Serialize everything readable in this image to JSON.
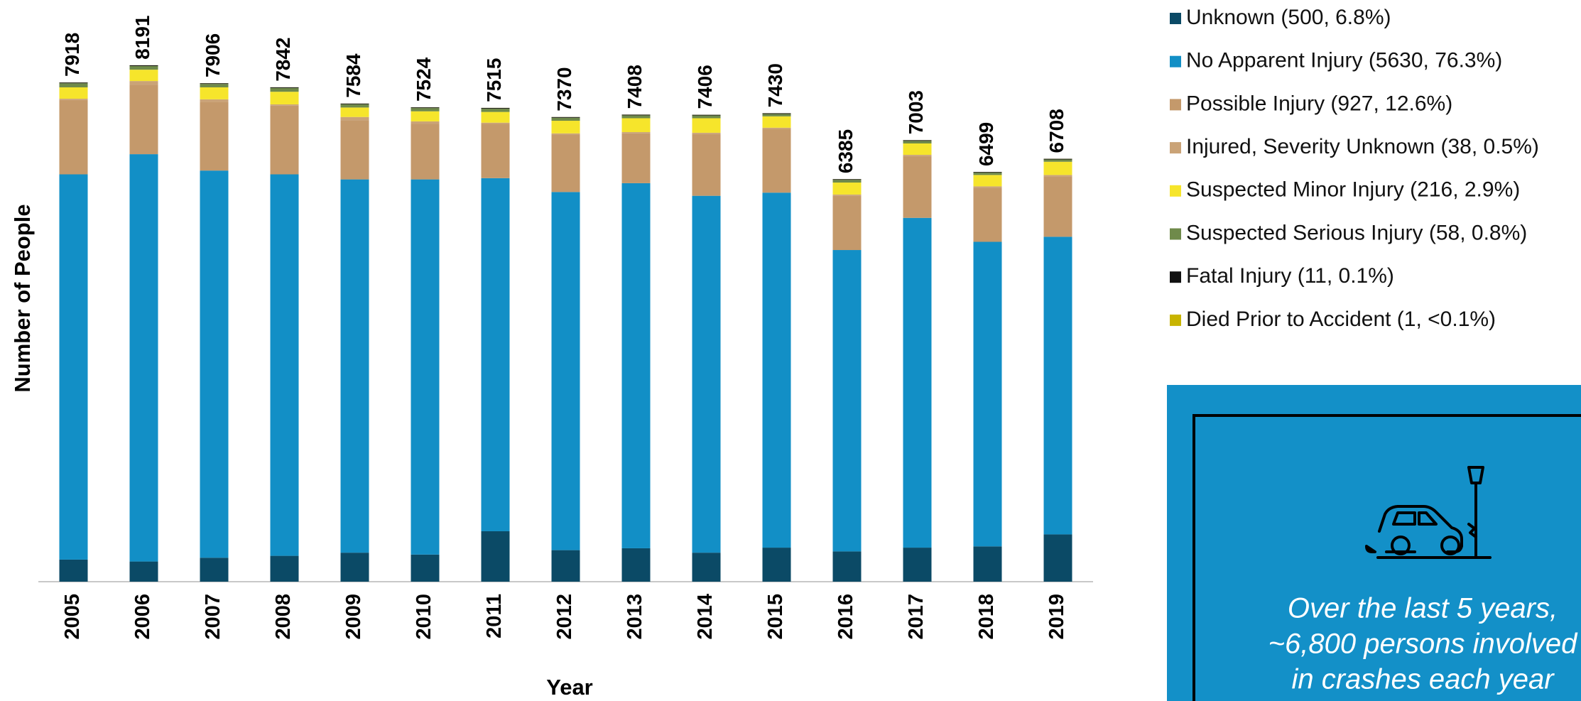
{
  "chart_data": {
    "type": "stacked_bar",
    "x_label": "Year",
    "y_label": "Number of People",
    "categories": [
      "2005",
      "2006",
      "2007",
      "2008",
      "2009",
      "2010",
      "2011",
      "2012",
      "2013",
      "2014",
      "2015",
      "2016",
      "2017",
      "2018",
      "2019"
    ],
    "totals": [
      7918,
      8191,
      7906,
      7842,
      7584,
      7524,
      7515,
      7370,
      7408,
      7406,
      7430,
      6385,
      7003,
      6499,
      6708
    ],
    "ylim": [
      0,
      9000
    ],
    "series": [
      {
        "name": "Unknown (500, 6.8%)",
        "color": "#0b4a66",
        "values": [
          350,
          320,
          380,
          410,
          460,
          430,
          800,
          500,
          530,
          460,
          540,
          480,
          540,
          560,
          750
        ]
      },
      {
        "name": "No Apparent Injury (5630, 76.3%)",
        "color": "#128fc6",
        "values": [
          6110,
          6460,
          6140,
          6050,
          5920,
          5950,
          5600,
          5680,
          5790,
          5660,
          5630,
          4780,
          5230,
          4830,
          4720
        ]
      },
      {
        "name": "Possible Injury (927, 12.6%)",
        "color": "#c4996b",
        "values": [
          1180,
          1100,
          1090,
          1090,
          940,
          880,
          860,
          910,
          790,
          980,
          1010,
          860,
          980,
          860,
          960
        ]
      },
      {
        "name": "Injured, Severity Unknown (38, 0.5%)",
        "color": "#caa377",
        "values": [
          20,
          60,
          40,
          20,
          50,
          40,
          20,
          20,
          20,
          20,
          20,
          20,
          20,
          20,
          20
        ]
      },
      {
        "name": "Suspected Minor Injury (216, 2.9%)",
        "color": "#f6e52b",
        "values": [
          180,
          180,
          190,
          200,
          150,
          160,
          170,
          200,
          220,
          230,
          180,
          190,
          180,
          180,
          210
        ]
      },
      {
        "name": "Suspected Serious Injury (58, 0.8%)",
        "color": "#6f8a4a",
        "values": [
          65,
          58,
          54,
          60,
          52,
          52,
          53,
          48,
          46,
          44,
          38,
          43,
          41,
          37,
          36
        ]
      },
      {
        "name": "Fatal Injury (11, 0.1%)",
        "color": "#111111",
        "values": [
          12,
          12,
          11,
          11,
          11,
          11,
          11,
          11,
          11,
          11,
          11,
          11,
          11,
          11,
          11
        ]
      },
      {
        "name": "Died Prior to Accident (1, <0.1%)",
        "color": "#c8b400",
        "values": [
          1,
          1,
          1,
          1,
          1,
          1,
          1,
          1,
          1,
          1,
          1,
          1,
          1,
          1,
          1
        ]
      }
    ]
  },
  "info_box": {
    "lines": [
      "Over the last 5 years,",
      "~6,800 persons involved",
      "in crashes each year"
    ]
  }
}
